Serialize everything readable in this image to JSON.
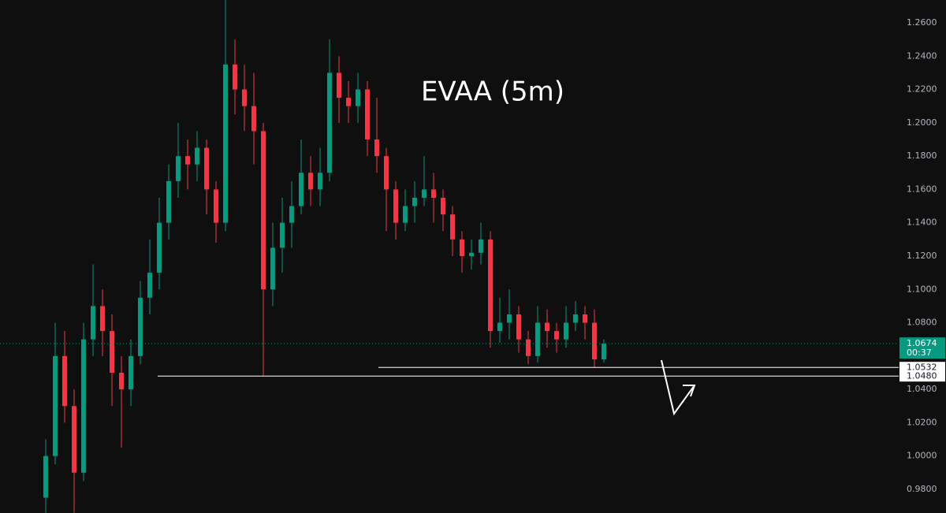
{
  "chart_data": {
    "type": "candlestick",
    "title": "EVAA (5m)",
    "up_color": "#089981",
    "down_color": "#f23645",
    "series": {
      "open": [
        0.975,
        1.0,
        1.06,
        1.03,
        0.99,
        1.07,
        1.09,
        1.075,
        1.05,
        1.04,
        1.06,
        1.095,
        1.11,
        1.14,
        1.165,
        1.18,
        1.175,
        1.185,
        1.16,
        1.14,
        1.235,
        1.22,
        1.21,
        1.195,
        1.1,
        1.125,
        1.14,
        1.15,
        1.17,
        1.16,
        1.17,
        1.23,
        1.215,
        1.21,
        1.22,
        1.19,
        1.18,
        1.16,
        1.14,
        1.15,
        1.155,
        1.16,
        1.155,
        1.145,
        1.13,
        1.12,
        1.122,
        1.13,
        1.075,
        1.08,
        1.085,
        1.07,
        1.06,
        1.08,
        1.075,
        1.07,
        1.08,
        1.085,
        1.08,
        1.058
      ],
      "high": [
        1.01,
        1.08,
        1.075,
        1.04,
        1.08,
        1.115,
        1.1,
        1.085,
        1.06,
        1.07,
        1.105,
        1.13,
        1.155,
        1.175,
        1.2,
        1.19,
        1.195,
        1.19,
        1.165,
        1.2737,
        1.25,
        1.235,
        1.23,
        1.2,
        1.14,
        1.155,
        1.165,
        1.19,
        1.18,
        1.185,
        1.25,
        1.24,
        1.225,
        1.23,
        1.225,
        1.215,
        1.185,
        1.165,
        1.16,
        1.165,
        1.18,
        1.17,
        1.16,
        1.15,
        1.135,
        1.13,
        1.14,
        1.135,
        1.095,
        1.1,
        1.09,
        1.075,
        1.09,
        1.088,
        1.08,
        1.09,
        1.093,
        1.09,
        1.088,
        1.07
      ],
      "low": [
        0.966,
        0.995,
        1.02,
        0.966,
        0.985,
        1.06,
        1.06,
        1.03,
        1.005,
        1.03,
        1.055,
        1.085,
        1.1,
        1.13,
        1.155,
        1.16,
        1.165,
        1.145,
        1.128,
        1.135,
        1.205,
        1.195,
        1.175,
        1.048,
        1.09,
        1.11,
        1.125,
        1.145,
        1.15,
        1.15,
        1.165,
        1.2,
        1.2,
        1.2,
        1.18,
        1.17,
        1.135,
        1.13,
        1.135,
        1.14,
        1.15,
        1.14,
        1.135,
        1.12,
        1.11,
        1.112,
        1.115,
        1.065,
        1.068,
        1.07,
        1.062,
        1.055,
        1.056,
        1.065,
        1.062,
        1.065,
        1.075,
        1.07,
        1.053,
        1.056
      ],
      "close": [
        1.0,
        1.06,
        1.03,
        0.99,
        1.07,
        1.09,
        1.075,
        1.05,
        1.04,
        1.06,
        1.095,
        1.11,
        1.14,
        1.165,
        1.18,
        1.175,
        1.185,
        1.16,
        1.14,
        1.235,
        1.22,
        1.21,
        1.195,
        1.1,
        1.125,
        1.14,
        1.15,
        1.17,
        1.16,
        1.17,
        1.23,
        1.215,
        1.21,
        1.22,
        1.19,
        1.18,
        1.16,
        1.14,
        1.15,
        1.155,
        1.16,
        1.155,
        1.145,
        1.13,
        1.12,
        1.122,
        1.13,
        1.075,
        1.08,
        1.085,
        1.07,
        1.06,
        1.08,
        1.075,
        1.07,
        1.08,
        1.085,
        1.08,
        1.058,
        1.0674
      ]
    },
    "ylim": [
      0.9658,
      1.2737
    ],
    "yticks": [
      {
        "value": 0.98,
        "label": "0.9800"
      },
      {
        "value": 1.0,
        "label": "1.0000"
      },
      {
        "value": 1.02,
        "label": "1.0200"
      },
      {
        "value": 1.04,
        "label": "1.0400"
      },
      {
        "value": 1.06,
        "label": "1.0600"
      },
      {
        "value": 1.08,
        "label": "1.0800"
      },
      {
        "value": 1.1,
        "label": "1.1000"
      },
      {
        "value": 1.12,
        "label": "1.1200"
      },
      {
        "value": 1.14,
        "label": "1.1400"
      },
      {
        "value": 1.16,
        "label": "1.1600"
      },
      {
        "value": 1.18,
        "label": "1.1800"
      },
      {
        "value": 1.2,
        "label": "1.2000"
      },
      {
        "value": 1.22,
        "label": "1.2200"
      },
      {
        "value": 1.24,
        "label": "1.2400"
      },
      {
        "value": 1.26,
        "label": "1.2600"
      }
    ],
    "last_price": 1.0674,
    "countdown": "00:37",
    "levels": [
      1.0532,
      {
        "value": 1.048,
        "label": "1.0480"
      }
    ]
  }
}
